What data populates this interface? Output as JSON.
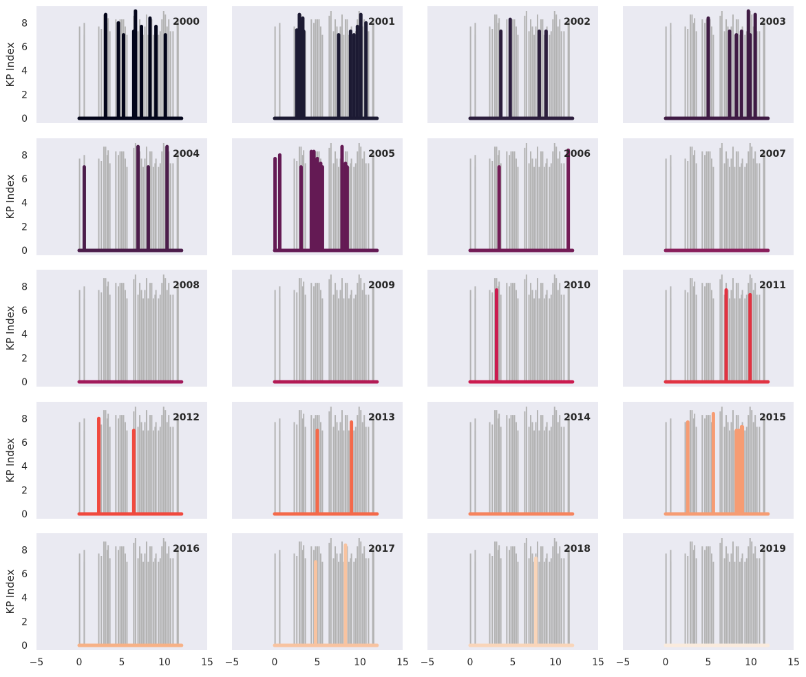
{
  "chart_data": {
    "type": "line",
    "layout": "small multiples, 5 rows x 4 columns, shared x and y axes",
    "ylabel": "KP Index",
    "xlabel": "",
    "xlim": [
      -5,
      15
    ],
    "ylim": [
      -0.4,
      9.4
    ],
    "xticks": [
      -5,
      0,
      5,
      10,
      15
    ],
    "yticks": [
      0,
      2,
      4,
      6,
      8
    ],
    "grid": false,
    "background_color": "#eaeaf2",
    "background_series_color": "#b3b3b3",
    "note": "Each panel shows all years' storm days in gray with that panel's year highlighted in color; x spans 0 to 12, baseline at KP 0.",
    "all_years_spikes": [
      [
        0.05,
        7.7
      ],
      [
        0.6,
        7.0
      ],
      [
        0.6,
        8.0
      ],
      [
        2.3,
        7.7
      ],
      [
        2.6,
        7.5
      ],
      [
        2.9,
        8.7
      ],
      [
        3.1,
        8.7
      ],
      [
        3.3,
        8.0
      ],
      [
        3.4,
        8.4
      ],
      [
        3.6,
        7.3
      ],
      [
        4.3,
        8.3
      ],
      [
        4.6,
        8.0
      ],
      [
        4.8,
        8.3
      ],
      [
        5.0,
        8.3
      ],
      [
        5.2,
        8.3
      ],
      [
        5.4,
        7.7
      ],
      [
        5.6,
        7.0
      ],
      [
        6.4,
        8.6
      ],
      [
        6.6,
        9.0
      ],
      [
        6.9,
        7.3
      ],
      [
        7.1,
        8.3
      ],
      [
        7.3,
        7.7
      ],
      [
        7.5,
        7.0
      ],
      [
        7.7,
        7.7
      ],
      [
        7.9,
        8.7
      ],
      [
        8.1,
        7.0
      ],
      [
        8.3,
        8.3
      ],
      [
        8.5,
        8.3
      ],
      [
        8.7,
        7.0
      ],
      [
        8.9,
        7.3
      ],
      [
        9.0,
        7.7
      ],
      [
        9.3,
        7.0
      ],
      [
        9.5,
        7.3
      ],
      [
        9.7,
        8.3
      ],
      [
        9.9,
        9.0
      ],
      [
        10.1,
        8.7
      ],
      [
        10.3,
        7.7
      ],
      [
        10.5,
        8.3
      ],
      [
        10.7,
        7.3
      ],
      [
        11.0,
        7.3
      ],
      [
        11.5,
        8.3
      ],
      [
        11.6,
        8.3
      ]
    ],
    "series": [
      {
        "name": "2000",
        "color": "#03051a",
        "spikes": [
          [
            3.1,
            8.7
          ],
          [
            4.6,
            8.0
          ],
          [
            5.2,
            7.0
          ],
          [
            6.4,
            7.3
          ],
          [
            6.6,
            9.0
          ],
          [
            7.3,
            7.7
          ],
          [
            8.3,
            8.4
          ],
          [
            9.0,
            7.7
          ],
          [
            10.1,
            7.0
          ]
        ]
      },
      {
        "name": "2001",
        "color": "#1c1a33",
        "spikes": [
          [
            2.6,
            7.4
          ],
          [
            2.9,
            8.7
          ],
          [
            3.1,
            8.0
          ],
          [
            3.3,
            8.4
          ],
          [
            3.4,
            7.3
          ],
          [
            7.5,
            7.0
          ],
          [
            8.9,
            7.3
          ],
          [
            9.3,
            7.0
          ],
          [
            9.7,
            7.7
          ],
          [
            10.1,
            8.7
          ],
          [
            10.7,
            8.0
          ]
        ]
      },
      {
        "name": "2002",
        "color": "#2c1e3d",
        "spikes": [
          [
            3.6,
            7.3
          ],
          [
            4.7,
            8.3
          ],
          [
            8.1,
            7.3
          ],
          [
            8.9,
            7.3
          ]
        ]
      },
      {
        "name": "2003",
        "color": "#3f1b44",
        "spikes": [
          [
            5.0,
            8.4
          ],
          [
            7.5,
            7.3
          ],
          [
            8.3,
            7.0
          ],
          [
            8.9,
            7.3
          ],
          [
            9.7,
            9.0
          ],
          [
            9.9,
            7.0
          ],
          [
            10.5,
            8.7
          ]
        ]
      },
      {
        "name": "2004",
        "color": "#4c1d4b",
        "spikes": [
          [
            0.6,
            7.0
          ],
          [
            6.9,
            8.7
          ],
          [
            8.1,
            7.0
          ],
          [
            10.3,
            8.7
          ]
        ]
      },
      {
        "name": "2005",
        "color": "#641a54",
        "spikes": [
          [
            0.05,
            7.7
          ],
          [
            0.6,
            8.0
          ],
          [
            3.1,
            7.0
          ],
          [
            4.3,
            8.3
          ],
          [
            4.6,
            8.3
          ],
          [
            5.0,
            7.7
          ],
          [
            5.4,
            7.3
          ],
          [
            5.6,
            7.0
          ],
          [
            7.9,
            8.7
          ],
          [
            8.3,
            7.3
          ],
          [
            8.5,
            7.0
          ]
        ]
      },
      {
        "name": "2006",
        "color": "#731c56",
        "spikes": [
          [
            3.4,
            7.0
          ],
          [
            11.5,
            8.4
          ]
        ]
      },
      {
        "name": "2007",
        "color": "#891e5b",
        "spikes": []
      },
      {
        "name": "2008",
        "color": "#a11a5b",
        "spikes": []
      },
      {
        "name": "2009",
        "color": "#b31a54",
        "spikes": []
      },
      {
        "name": "2010",
        "color": "#cb1b4f",
        "spikes": [
          [
            3.1,
            7.7
          ]
        ]
      },
      {
        "name": "2011",
        "color": "#e13342",
        "spikes": [
          [
            7.1,
            7.7
          ],
          [
            9.9,
            7.3
          ]
        ]
      },
      {
        "name": "2012",
        "color": "#f0493e",
        "spikes": [
          [
            2.3,
            8.0
          ],
          [
            6.4,
            7.0
          ]
        ]
      },
      {
        "name": "2013",
        "color": "#f4694a",
        "spikes": [
          [
            5.0,
            7.0
          ],
          [
            9.0,
            7.7
          ]
        ]
      },
      {
        "name": "2014",
        "color": "#f6845e",
        "spikes": []
      },
      {
        "name": "2015",
        "color": "#f69c73",
        "spikes": [
          [
            2.6,
            7.7
          ],
          [
            5.6,
            8.4
          ],
          [
            8.3,
            7.0
          ],
          [
            8.5,
            7.0
          ],
          [
            8.7,
            7.0
          ],
          [
            8.9,
            7.3
          ],
          [
            9.0,
            7.3
          ]
        ]
      },
      {
        "name": "2016",
        "color": "#f7b186",
        "spikes": []
      },
      {
        "name": "2017",
        "color": "#f8c3a0",
        "spikes": [
          [
            4.8,
            7.0
          ],
          [
            8.3,
            8.4
          ]
        ]
      },
      {
        "name": "2018",
        "color": "#f9d5b9",
        "spikes": [
          [
            7.7,
            7.3
          ]
        ]
      },
      {
        "name": "2019",
        "color": "#faebdd",
        "spikes": []
      }
    ]
  }
}
